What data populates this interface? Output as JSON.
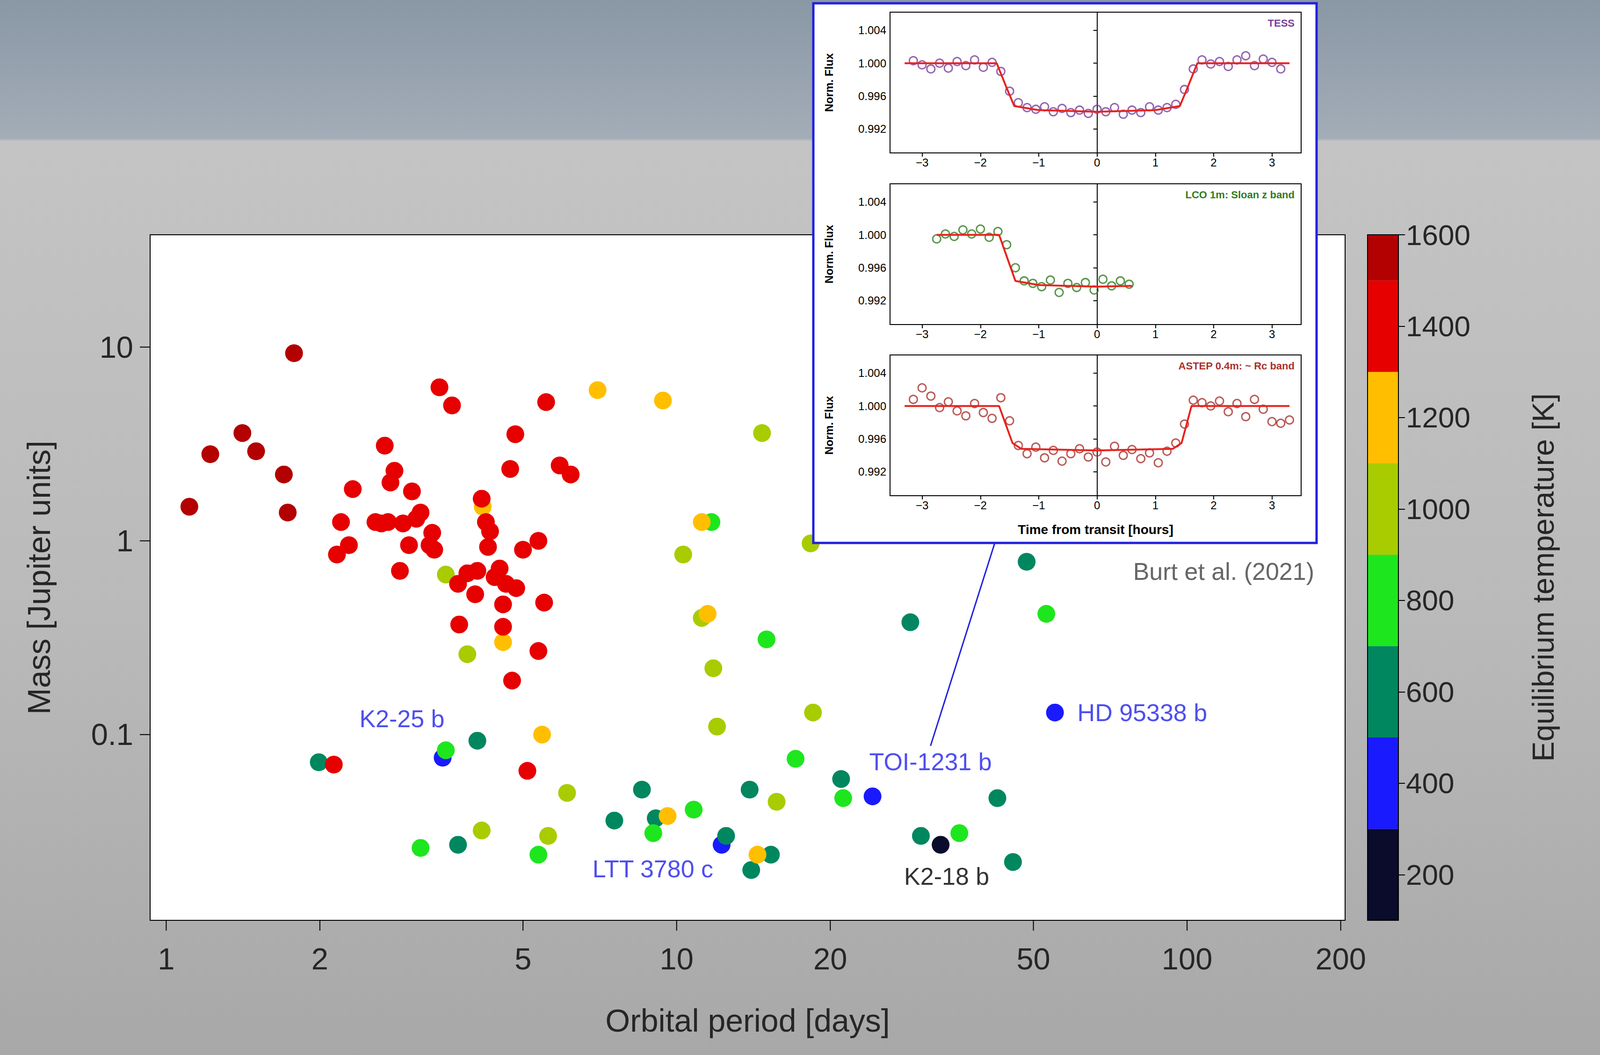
{
  "chart_data": [
    {
      "type": "scatter",
      "xlabel": "Orbital period [days]",
      "ylabel": "Mass [Jupiter units]",
      "log": true,
      "grid": false,
      "marker": "circle",
      "xlim": [
        0.93,
        204
      ],
      "xticks": [
        1,
        2,
        5,
        10,
        20,
        50,
        100,
        200
      ],
      "ylim": [
        0.011,
        38
      ],
      "yticks": [
        0.1,
        1,
        10
      ],
      "x": [
        32.9,
        3.48,
        12.25,
        24.2,
        55.1,
        1.99,
        4.07,
        3.73,
        7.55,
        8.55,
        9.1,
        12.5,
        13.9,
        14.0,
        15.3,
        21.0,
        28.7,
        30.1,
        42.5,
        45.6,
        48.5,
        11.7,
        15.0,
        53.0,
        17.1,
        21.2,
        10.8,
        9.0,
        35.8,
        3.15,
        3.53,
        5.36,
        3.53,
        3.89,
        10.3,
        11.2,
        11.8,
        12.0,
        14.7,
        18.3,
        18.5,
        6.1,
        4.15,
        5.6,
        15.7,
        7.0,
        9.4,
        4.17,
        4.57,
        5.45,
        11.2,
        11.5,
        9.6,
        14.4,
        1.11,
        1.22,
        1.41,
        1.5,
        1.7,
        1.73,
        1.78,
        2.16,
        2.2,
        2.28,
        2.32,
        2.57,
        2.64,
        2.68,
        2.72,
        2.75,
        2.8,
        2.87,
        2.91,
        2.99,
        3.03,
        3.09,
        3.15,
        3.28,
        3.32,
        3.35,
        3.43,
        3.63,
        3.73,
        3.75,
        3.89,
        4.03,
        4.07,
        4.15,
        4.23,
        4.27,
        4.31,
        4.4,
        4.5,
        4.57,
        4.57,
        4.63,
        4.76,
        4.72,
        4.83,
        4.85,
        5.0,
        5.36,
        5.5,
        5.36,
        5.55,
        5.9,
        6.2,
        5.1,
        2.13
      ],
      "values": [
        0.027,
        0.076,
        0.027,
        0.048,
        0.13,
        0.072,
        0.093,
        0.027,
        0.036,
        0.052,
        0.037,
        0.03,
        0.052,
        0.02,
        0.024,
        0.059,
        0.38,
        0.03,
        0.047,
        0.022,
        0.78,
        1.25,
        0.31,
        0.42,
        0.075,
        0.047,
        0.041,
        0.031,
        0.031,
        0.026,
        0.083,
        0.024,
        0.67,
        0.26,
        0.85,
        0.4,
        0.22,
        0.11,
        3.6,
        0.97,
        0.13,
        0.05,
        0.032,
        0.03,
        0.045,
        6.0,
        5.3,
        1.5,
        0.3,
        0.1,
        1.25,
        0.42,
        0.038,
        0.024,
        1.5,
        2.8,
        3.6,
        2.9,
        2.2,
        1.4,
        9.3,
        0.85,
        1.25,
        0.95,
        1.85,
        1.25,
        1.23,
        3.1,
        1.25,
        2.0,
        2.3,
        0.7,
        1.23,
        0.95,
        1.8,
        1.3,
        1.4,
        0.95,
        1.1,
        0.9,
        6.2,
        5.0,
        0.6,
        0.37,
        0.68,
        0.53,
        0.7,
        1.65,
        1.25,
        0.93,
        1.12,
        0.65,
        0.72,
        0.47,
        0.36,
        0.6,
        0.19,
        2.35,
        3.55,
        0.57,
        0.9,
        1.0,
        0.48,
        0.27,
        5.2,
        2.45,
        2.2,
        0.065,
        0.07
      ],
      "teq": [
        255,
        400,
        400,
        400,
        400,
        600,
        600,
        600,
        600,
        600,
        600,
        600,
        600,
        600,
        600,
        600,
        600,
        600,
        600,
        600,
        600,
        800,
        800,
        800,
        800,
        800,
        800,
        800,
        800,
        800,
        800,
        800,
        1000,
        1000,
        1000,
        1000,
        1000,
        1000,
        1000,
        1000,
        1000,
        1000,
        1000,
        1000,
        1000,
        1200,
        1200,
        1200,
        1200,
        1200,
        1200,
        1200,
        1200,
        1200,
        1550,
        1550,
        1550,
        1550,
        1550,
        1550,
        1550,
        1400,
        1400,
        1400,
        1400,
        1400,
        1400,
        1400,
        1400,
        1400,
        1400,
        1400,
        1400,
        1400,
        1400,
        1400,
        1400,
        1400,
        1400,
        1400,
        1400,
        1400,
        1400,
        1400,
        1400,
        1400,
        1400,
        1400,
        1400,
        1400,
        1400,
        1400,
        1400,
        1400,
        1400,
        1400,
        1400,
        1400,
        1400,
        1400,
        1400,
        1400,
        1400,
        1400,
        1400,
        1400,
        1400,
        1400,
        1400
      ],
      "colorbar": {
        "label": "Equilibrium temperature [K]",
        "range": [
          100,
          1600
        ],
        "ticks": [
          200,
          400,
          600,
          800,
          1000,
          1200,
          1400,
          1600
        ],
        "bounds": [
          100,
          300,
          500,
          700,
          900,
          1100,
          1300,
          1500,
          1600
        ],
        "colors": [
          "#0b0b2b",
          "#1a1aff",
          "#00875f",
          "#1ee61e",
          "#a8cc00",
          "#ffbf00",
          "#e60000",
          "#b30000"
        ]
      },
      "annotations": [
        {
          "text": "K2-25 b",
          "x": 3.48,
          "y": 0.076,
          "color": "#2222ee"
        },
        {
          "text": "LTT 3780 c",
          "x": 12.25,
          "y": 0.027,
          "color": "#2222ee"
        },
        {
          "text": "TOI-1231 b",
          "x": 24.2,
          "y": 0.048,
          "color": "#2222ee"
        },
        {
          "text": "HD 95338 b",
          "x": 55.1,
          "y": 0.13,
          "color": "#2222ee"
        },
        {
          "text": "K2-18 b",
          "x": 32.9,
          "y": 0.027,
          "color": "#000000"
        }
      ],
      "source": "Burt et al. (2021)"
    },
    {
      "type": "scatter",
      "title": "TESS",
      "ylabel": "Norm. Flux",
      "grid": false,
      "xlim": [
        -3.55,
        3.5
      ],
      "xticks": [
        {
          "value": -3,
          "label": "−3"
        },
        {
          "value": -2,
          "label": "−2"
        },
        {
          "value": -1,
          "label": "−1"
        },
        0,
        1,
        2,
        3
      ],
      "ylim": [
        0.9891,
        1.0062
      ],
      "yticks": [
        0.992,
        0.996,
        {
          "value": 1,
          "label": "1.000"
        },
        1.004
      ],
      "series": [
        {
          "type": "scatter",
          "marker": "open circle",
          "color": "#7b3f9e",
          "x": [
            -3.15,
            -3.0,
            -2.85,
            -2.7,
            -2.55,
            -2.4,
            -2.25,
            -2.1,
            -1.95,
            -1.8,
            -1.65,
            -1.5,
            -1.35,
            -1.2,
            -1.05,
            -0.9,
            -0.75,
            -0.6,
            -0.45,
            -0.3,
            -0.15,
            0.0,
            0.15,
            0.3,
            0.45,
            0.6,
            0.75,
            0.9,
            1.05,
            1.2,
            1.35,
            1.5,
            1.65,
            1.8,
            1.95,
            2.1,
            2.25,
            2.4,
            2.55,
            2.7,
            2.85,
            3.0,
            3.15
          ],
          "values": [
            1.0003,
            0.9998,
            0.9993,
            1.0,
            0.9994,
            1.0002,
            0.9997,
            1.0004,
            0.9995,
            1.0001,
            0.999,
            0.9966,
            0.9952,
            0.9946,
            0.9944,
            0.9947,
            0.9941,
            0.9945,
            0.994,
            0.9943,
            0.9939,
            0.9944,
            0.9941,
            0.9946,
            0.9938,
            0.9943,
            0.994,
            0.9947,
            0.9943,
            0.9946,
            0.995,
            0.9968,
            0.9993,
            1.0004,
            0.9999,
            1.0002,
            0.9996,
            1.0004,
            1.0009,
            0.9997,
            1.0005,
            1.0001,
            0.9993
          ]
        },
        {
          "type": "line",
          "line_style": "solid",
          "color": "#e8231e",
          "x": [
            -3.3,
            -1.72,
            -1.55,
            -1.42,
            -1.0,
            0.0,
            1.0,
            1.42,
            1.55,
            1.72,
            3.3
          ],
          "values": [
            1.0,
            1.0,
            0.997,
            0.9948,
            0.9943,
            0.9941,
            0.9943,
            0.9948,
            0.997,
            1.0,
            1.0
          ]
        }
      ]
    },
    {
      "type": "scatter",
      "title": "LCO 1m: Sloan z band",
      "ylabel": "Norm. Flux",
      "grid": false,
      "xlim": [
        -3.55,
        3.5
      ],
      "xticks": [
        {
          "value": -3,
          "label": "−3"
        },
        {
          "value": -2,
          "label": "−2"
        },
        {
          "value": -1,
          "label": "−1"
        },
        0,
        1,
        2,
        3
      ],
      "ylim": [
        0.9891,
        1.0062
      ],
      "yticks": [
        0.992,
        0.996,
        {
          "value": 1,
          "label": "1.000"
        },
        1.004
      ],
      "series": [
        {
          "type": "scatter",
          "marker": "open circle",
          "color": "#2e7d1e",
          "x": [
            -2.75,
            -2.6,
            -2.45,
            -2.3,
            -2.15,
            -2.0,
            -1.85,
            -1.7,
            -1.55,
            -1.4,
            -1.25,
            -1.1,
            -0.95,
            -0.8,
            -0.65,
            -0.5,
            -0.35,
            -0.2,
            -0.05,
            0.1,
            0.25,
            0.4,
            0.55
          ],
          "values": [
            0.9995,
            1.0001,
            0.9998,
            1.0006,
            1.0001,
            1.0007,
            0.9997,
            1.0004,
            0.9988,
            0.996,
            0.9944,
            0.9941,
            0.9937,
            0.9945,
            0.993,
            0.9941,
            0.9936,
            0.9942,
            0.9933,
            0.9946,
            0.9938,
            0.9944,
            0.994
          ]
        },
        {
          "type": "line",
          "line_style": "solid",
          "color": "#e8231e",
          "x": [
            -2.75,
            -1.68,
            -1.52,
            -1.4,
            -1.0,
            0.0,
            0.6
          ],
          "values": [
            1.0,
            1.0,
            0.9968,
            0.9944,
            0.9939,
            0.9937,
            0.9938
          ]
        }
      ]
    },
    {
      "type": "scatter",
      "title": "ASTEP 0.4m: ~ Rc band",
      "ylabel": "Norm. Flux",
      "xlabel": "Time from transit [hours]",
      "grid": false,
      "xlim": [
        -3.55,
        3.5
      ],
      "xticks": [
        {
          "value": -3,
          "label": "−3"
        },
        {
          "value": -2,
          "label": "−2"
        },
        {
          "value": -1,
          "label": "−1"
        },
        0,
        1,
        2,
        3
      ],
      "ylim": [
        0.9891,
        1.0062
      ],
      "yticks": [
        0.992,
        0.996,
        {
          "value": 1,
          "label": "1.000"
        },
        1.004
      ],
      "series": [
        {
          "type": "scatter",
          "marker": "open circle",
          "color": "#a8322d",
          "x": [
            -3.15,
            -3.0,
            -2.85,
            -2.7,
            -2.55,
            -2.4,
            -2.25,
            -2.1,
            -1.95,
            -1.8,
            -1.65,
            -1.5,
            -1.35,
            -1.2,
            -1.05,
            -0.9,
            -0.75,
            -0.6,
            -0.45,
            -0.3,
            -0.15,
            0.0,
            0.15,
            0.3,
            0.45,
            0.6,
            0.75,
            0.9,
            1.05,
            1.2,
            1.35,
            1.5,
            1.65,
            1.8,
            1.95,
            2.1,
            2.25,
            2.4,
            2.55,
            2.7,
            2.85,
            3.0,
            3.15,
            3.3
          ],
          "values": [
            1.0008,
            1.0022,
            1.0012,
            0.9998,
            1.0005,
            0.9994,
            0.9988,
            1.0003,
            0.9992,
            0.9985,
            1.001,
            0.9982,
            0.9952,
            0.9942,
            0.995,
            0.9937,
            0.9946,
            0.9933,
            0.9942,
            0.9948,
            0.9938,
            0.9944,
            0.9932,
            0.9951,
            0.994,
            0.9947,
            0.9936,
            0.9943,
            0.9931,
            0.9945,
            0.9955,
            0.9978,
            1.0007,
            1.0004,
            1.0,
            1.0006,
            0.9993,
            1.0003,
            0.9987,
            1.0008,
            0.9996,
            0.9981,
            0.9979,
            0.9983
          ]
        },
        {
          "type": "line",
          "line_style": "solid",
          "color": "#e8231e",
          "x": [
            -3.3,
            -1.68,
            -1.45,
            -1.3,
            0.0,
            1.3,
            1.45,
            1.62,
            3.3
          ],
          "values": [
            1.0,
            1.0,
            0.9955,
            0.9948,
            0.9946,
            0.9948,
            0.9955,
            1.0,
            1.0
          ]
        }
      ]
    }
  ]
}
